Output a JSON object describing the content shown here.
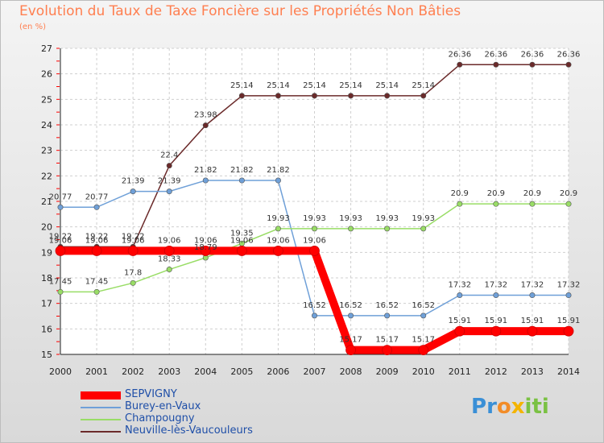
{
  "title": "Evolution du Taux de Taxe Foncière sur les Propriétés Non Bâties",
  "subtitle": "(en %)",
  "logo": {
    "letters": [
      {
        "ch": "P",
        "color": "#3a8fd6"
      },
      {
        "ch": "r",
        "color": "#3a8fd6"
      },
      {
        "ch": "o",
        "color": "#f28c28"
      },
      {
        "ch": "x",
        "color": "#f4b400"
      },
      {
        "ch": "i",
        "color": "#7ac143"
      },
      {
        "ch": "t",
        "color": "#7ac143"
      },
      {
        "ch": "i",
        "color": "#7ac143"
      }
    ]
  },
  "chart_data": {
    "type": "line",
    "x": [
      2000,
      2001,
      2002,
      2003,
      2004,
      2005,
      2006,
      2007,
      2008,
      2009,
      2010,
      2011,
      2012,
      2013,
      2014
    ],
    "ylim": [
      15,
      27
    ],
    "yticks": [
      15,
      16,
      17,
      18,
      19,
      20,
      21,
      22,
      23,
      24,
      25,
      26,
      27
    ],
    "grid": true,
    "legend_position": "bottom-left",
    "series": [
      {
        "name": "SEPVIGNY",
        "color": "#ff0000",
        "values": [
          19.06,
          19.06,
          19.06,
          19.06,
          19.06,
          19.06,
          19.06,
          19.06,
          15.17,
          15.17,
          15.17,
          15.91,
          15.91,
          15.91,
          15.91
        ],
        "labels": [
          "19.06",
          "19.06",
          "19.06",
          "19.06",
          "19.06",
          "19.06",
          "19.06",
          "19.06",
          "15.17",
          "15.17",
          "15.17",
          "15.91",
          "15.91",
          "15.91",
          "15.91"
        ]
      },
      {
        "name": "Burey-en-Vaux",
        "color": "#6fa0d8",
        "values": [
          20.77,
          20.77,
          21.39,
          21.39,
          21.82,
          21.82,
          21.82,
          16.52,
          16.52,
          16.52,
          16.52,
          17.32,
          17.32,
          17.32,
          17.32
        ],
        "labels": [
          "20.77",
          "20.77",
          "21.39",
          "21.39",
          "21.82",
          "21.82",
          "21.82",
          "16.52",
          "16.52",
          "16.52",
          "16.52",
          "17.32",
          "17.32",
          "17.32",
          "17.32"
        ]
      },
      {
        "name": "Champougny",
        "color": "#99dd66",
        "values": [
          17.45,
          17.45,
          17.8,
          18.33,
          18.79,
          19.35,
          19.93,
          19.93,
          19.93,
          19.93,
          19.93,
          20.9,
          20.9,
          20.9,
          20.9
        ],
        "labels": [
          "17.45",
          "17.45",
          "17.8",
          "18.33",
          "18.79",
          "19.35",
          "19.93",
          "19.93",
          "19.93",
          "19.93",
          "19.93",
          "20.9",
          "20.9",
          "20.9",
          "20.9"
        ]
      },
      {
        "name": "Neuville-lès-Vaucouleurs",
        "color": "#6b2a2a",
        "values": [
          19.22,
          19.22,
          19.22,
          22.4,
          23.98,
          25.14,
          25.14,
          25.14,
          25.14,
          25.14,
          25.14,
          26.36,
          26.36,
          26.36,
          26.36
        ],
        "labels": [
          "19.22",
          "19.22",
          "19.22",
          "22.4",
          "23.98",
          "25.14",
          "25.14",
          "25.14",
          "25.14",
          "25.14",
          "25.14",
          "26.36",
          "26.36",
          "26.36",
          "26.36"
        ]
      }
    ]
  }
}
